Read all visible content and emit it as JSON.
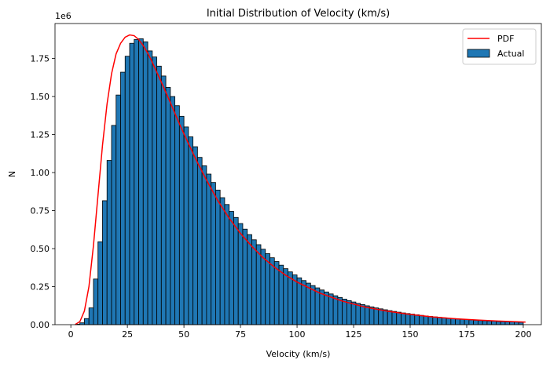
{
  "chart_data": {
    "type": "bar",
    "title": "Initial Distribution of Velocity (km/s)",
    "xlabel": "Velocity (km/s)",
    "ylabel": "N",
    "y_scale_label": "1e6",
    "xlim": [
      -7,
      208
    ],
    "ylim": [
      0,
      1980000
    ],
    "x_ticks": [
      0,
      25,
      50,
      75,
      100,
      125,
      150,
      175,
      200
    ],
    "y_ticks": [
      0,
      250000,
      500000,
      750000,
      1000000,
      1250000,
      1500000,
      1750000
    ],
    "y_tick_labels": [
      "0.00",
      "0.25",
      "0.50",
      "0.75",
      "1.00",
      "1.25",
      "1.50",
      "1.75"
    ],
    "bin_width": 2,
    "bin_start": 0,
    "bar_color": "#1f77b4",
    "bar_edge_color": "#000000",
    "pdf_color": "#ff0000",
    "legend": {
      "position": "top-right",
      "entries": [
        {
          "label": "PDF",
          "kind": "line",
          "color": "#ff0000"
        },
        {
          "label": "Actual",
          "kind": "patch",
          "color": "#1f77b4"
        }
      ]
    },
    "series": [
      {
        "name": "Actual",
        "kind": "histogram",
        "values": [
          0,
          3000,
          12000,
          40000,
          110000,
          300000,
          545000,
          815000,
          1080000,
          1310000,
          1510000,
          1660000,
          1765000,
          1850000,
          1875000,
          1880000,
          1860000,
          1800000,
          1760000,
          1700000,
          1635000,
          1560000,
          1500000,
          1440000,
          1370000,
          1300000,
          1235000,
          1170000,
          1100000,
          1045000,
          990000,
          935000,
          885000,
          835000,
          790000,
          745000,
          705000,
          665000,
          628000,
          592000,
          558000,
          526000,
          496000,
          467000,
          440000,
          415000,
          391000,
          368000,
          347000,
          327000,
          308000,
          290000,
          273000,
          257000,
          242000,
          228000,
          215000,
          202000,
          190000,
          179000,
          168000,
          158000,
          149000,
          140000,
          132000,
          124000,
          117000,
          110000,
          104000,
          98000,
          92000,
          87000,
          82000,
          77000,
          73000,
          69000,
          65000,
          61000,
          57000,
          54000,
          51000,
          48000,
          45000,
          42000,
          40000,
          37000,
          35000,
          33000,
          31000,
          29000,
          27000,
          26000,
          24000,
          23000,
          21000,
          20000,
          19000,
          18000,
          17000,
          16000
        ]
      },
      {
        "name": "PDF",
        "kind": "line",
        "x": [
          2,
          4,
          6,
          8,
          10,
          12,
          14,
          16,
          18,
          20,
          22,
          24,
          26,
          28,
          30,
          32,
          34,
          36,
          38,
          40,
          44,
          48,
          52,
          56,
          60,
          65,
          70,
          75,
          80,
          85,
          90,
          95,
          100,
          110,
          120,
          130,
          140,
          150,
          160,
          170,
          180,
          190,
          201
        ],
        "y": [
          2000,
          20000,
          90000,
          250000,
          520000,
          850000,
          1180000,
          1450000,
          1650000,
          1780000,
          1850000,
          1890000,
          1905000,
          1900000,
          1875000,
          1835000,
          1785000,
          1725000,
          1660000,
          1595000,
          1460000,
          1320000,
          1190000,
          1065000,
          950000,
          815000,
          700000,
          600000,
          515000,
          440000,
          378000,
          325000,
          280000,
          208000,
          155000,
          116000,
          88000,
          67000,
          51000,
          39000,
          30000,
          23000,
          17000
        ]
      }
    ]
  }
}
